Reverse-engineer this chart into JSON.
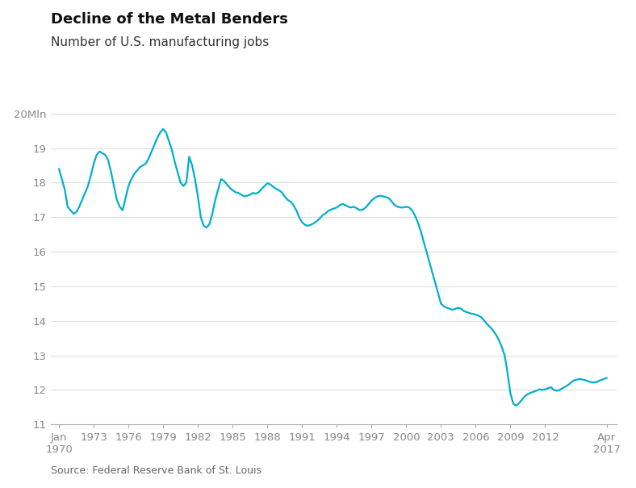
{
  "title": "Decline of the Metal Benders",
  "subtitle": "Number of U.S. manufacturing jobs",
  "source": "Source: Federal Reserve Bank of St. Louis",
  "line_color": "#00AECD",
  "background_color": "#FFFFFF",
  "ylim": [
    11,
    20.6
  ],
  "yticks": [
    11,
    12,
    13,
    14,
    15,
    16,
    17,
    18,
    19,
    20
  ],
  "ytick_labels": [
    "11",
    "12",
    "13",
    "14",
    "15",
    "16",
    "17",
    "18",
    "19",
    "20Mln"
  ],
  "xtick_labels": [
    "Jan\n1970",
    "1973",
    "1976",
    "1979",
    "1982",
    "1985",
    "1988",
    "1991",
    "1994",
    "1997",
    "2000",
    "2003",
    "2006",
    "2009",
    "2012",
    "Apr\n2017"
  ],
  "xtick_positions": [
    1970.0,
    1973.0,
    1976.0,
    1979.0,
    1982.0,
    1985.0,
    1988.0,
    1991.0,
    1994.0,
    1997.0,
    2000.0,
    2003.0,
    2006.0,
    2009.0,
    2012.0,
    2017.333
  ],
  "xlim": [
    1969.3,
    2018.2
  ],
  "data": [
    [
      1970.0,
      18.4
    ],
    [
      1970.25,
      18.1
    ],
    [
      1970.5,
      17.8
    ],
    [
      1970.75,
      17.3
    ],
    [
      1971.0,
      17.2
    ],
    [
      1971.25,
      17.1
    ],
    [
      1971.5,
      17.15
    ],
    [
      1971.75,
      17.3
    ],
    [
      1972.0,
      17.5
    ],
    [
      1972.25,
      17.7
    ],
    [
      1972.5,
      17.9
    ],
    [
      1972.75,
      18.2
    ],
    [
      1973.0,
      18.55
    ],
    [
      1973.25,
      18.8
    ],
    [
      1973.5,
      18.9
    ],
    [
      1973.75,
      18.85
    ],
    [
      1974.0,
      18.8
    ],
    [
      1974.25,
      18.65
    ],
    [
      1974.5,
      18.3
    ],
    [
      1974.75,
      17.9
    ],
    [
      1975.0,
      17.5
    ],
    [
      1975.25,
      17.3
    ],
    [
      1975.5,
      17.2
    ],
    [
      1975.75,
      17.55
    ],
    [
      1976.0,
      17.9
    ],
    [
      1976.25,
      18.1
    ],
    [
      1976.5,
      18.25
    ],
    [
      1976.75,
      18.35
    ],
    [
      1977.0,
      18.45
    ],
    [
      1977.25,
      18.5
    ],
    [
      1977.5,
      18.55
    ],
    [
      1977.75,
      18.7
    ],
    [
      1978.0,
      18.9
    ],
    [
      1978.25,
      19.1
    ],
    [
      1978.5,
      19.3
    ],
    [
      1978.75,
      19.45
    ],
    [
      1979.0,
      19.55
    ],
    [
      1979.25,
      19.45
    ],
    [
      1979.5,
      19.2
    ],
    [
      1979.75,
      18.95
    ],
    [
      1980.0,
      18.6
    ],
    [
      1980.25,
      18.3
    ],
    [
      1980.5,
      18.0
    ],
    [
      1980.75,
      17.9
    ],
    [
      1981.0,
      18.0
    ],
    [
      1981.25,
      18.75
    ],
    [
      1981.5,
      18.5
    ],
    [
      1981.75,
      18.1
    ],
    [
      1982.0,
      17.6
    ],
    [
      1982.25,
      17.0
    ],
    [
      1982.5,
      16.75
    ],
    [
      1982.75,
      16.7
    ],
    [
      1983.0,
      16.8
    ],
    [
      1983.25,
      17.1
    ],
    [
      1983.5,
      17.5
    ],
    [
      1983.75,
      17.8
    ],
    [
      1984.0,
      18.1
    ],
    [
      1984.25,
      18.05
    ],
    [
      1984.5,
      17.95
    ],
    [
      1984.75,
      17.85
    ],
    [
      1985.0,
      17.78
    ],
    [
      1985.25,
      17.72
    ],
    [
      1985.5,
      17.7
    ],
    [
      1985.75,
      17.65
    ],
    [
      1986.0,
      17.6
    ],
    [
      1986.25,
      17.62
    ],
    [
      1986.5,
      17.65
    ],
    [
      1986.75,
      17.7
    ],
    [
      1987.0,
      17.68
    ],
    [
      1987.25,
      17.72
    ],
    [
      1987.5,
      17.82
    ],
    [
      1987.75,
      17.9
    ],
    [
      1988.0,
      17.98
    ],
    [
      1988.25,
      17.95
    ],
    [
      1988.5,
      17.88
    ],
    [
      1988.75,
      17.82
    ],
    [
      1989.0,
      17.78
    ],
    [
      1989.25,
      17.72
    ],
    [
      1989.5,
      17.6
    ],
    [
      1989.75,
      17.5
    ],
    [
      1990.0,
      17.45
    ],
    [
      1990.25,
      17.35
    ],
    [
      1990.5,
      17.2
    ],
    [
      1990.75,
      17.0
    ],
    [
      1991.0,
      16.85
    ],
    [
      1991.25,
      16.78
    ],
    [
      1991.5,
      16.75
    ],
    [
      1991.75,
      16.78
    ],
    [
      1992.0,
      16.82
    ],
    [
      1992.25,
      16.88
    ],
    [
      1992.5,
      16.95
    ],
    [
      1992.75,
      17.05
    ],
    [
      1993.0,
      17.1
    ],
    [
      1993.25,
      17.18
    ],
    [
      1993.5,
      17.22
    ],
    [
      1993.75,
      17.25
    ],
    [
      1994.0,
      17.28
    ],
    [
      1994.25,
      17.35
    ],
    [
      1994.5,
      17.38
    ],
    [
      1994.75,
      17.35
    ],
    [
      1995.0,
      17.3
    ],
    [
      1995.25,
      17.28
    ],
    [
      1995.5,
      17.3
    ],
    [
      1995.75,
      17.25
    ],
    [
      1996.0,
      17.2
    ],
    [
      1996.25,
      17.22
    ],
    [
      1996.5,
      17.28
    ],
    [
      1996.75,
      17.38
    ],
    [
      1997.0,
      17.48
    ],
    [
      1997.25,
      17.55
    ],
    [
      1997.5,
      17.6
    ],
    [
      1997.75,
      17.62
    ],
    [
      1998.0,
      17.6
    ],
    [
      1998.25,
      17.58
    ],
    [
      1998.5,
      17.55
    ],
    [
      1998.75,
      17.45
    ],
    [
      1999.0,
      17.35
    ],
    [
      1999.25,
      17.3
    ],
    [
      1999.5,
      17.28
    ],
    [
      1999.75,
      17.28
    ],
    [
      2000.0,
      17.3
    ],
    [
      2000.25,
      17.28
    ],
    [
      2000.5,
      17.2
    ],
    [
      2000.75,
      17.05
    ],
    [
      2001.0,
      16.85
    ],
    [
      2001.25,
      16.6
    ],
    [
      2001.5,
      16.3
    ],
    [
      2001.75,
      16.0
    ],
    [
      2002.0,
      15.7
    ],
    [
      2002.25,
      15.4
    ],
    [
      2002.5,
      15.1
    ],
    [
      2002.75,
      14.8
    ],
    [
      2003.0,
      14.5
    ],
    [
      2003.25,
      14.42
    ],
    [
      2003.5,
      14.38
    ],
    [
      2003.75,
      14.35
    ],
    [
      2004.0,
      14.32
    ],
    [
      2004.25,
      14.35
    ],
    [
      2004.5,
      14.38
    ],
    [
      2004.75,
      14.35
    ],
    [
      2005.0,
      14.28
    ],
    [
      2005.25,
      14.25
    ],
    [
      2005.5,
      14.22
    ],
    [
      2005.75,
      14.2
    ],
    [
      2006.0,
      14.18
    ],
    [
      2006.25,
      14.15
    ],
    [
      2006.5,
      14.1
    ],
    [
      2006.75,
      14.0
    ],
    [
      2007.0,
      13.9
    ],
    [
      2007.25,
      13.82
    ],
    [
      2007.5,
      13.72
    ],
    [
      2007.75,
      13.6
    ],
    [
      2008.0,
      13.45
    ],
    [
      2008.25,
      13.25
    ],
    [
      2008.5,
      13.0
    ],
    [
      2008.75,
      12.5
    ],
    [
      2009.0,
      11.9
    ],
    [
      2009.25,
      11.6
    ],
    [
      2009.5,
      11.55
    ],
    [
      2009.75,
      11.62
    ],
    [
      2010.0,
      11.72
    ],
    [
      2010.25,
      11.82
    ],
    [
      2010.5,
      11.88
    ],
    [
      2010.75,
      11.92
    ],
    [
      2011.0,
      11.95
    ],
    [
      2011.25,
      11.98
    ],
    [
      2011.5,
      12.02
    ],
    [
      2011.75,
      12.0
    ],
    [
      2012.0,
      12.02
    ],
    [
      2012.25,
      12.05
    ],
    [
      2012.5,
      12.08
    ],
    [
      2012.75,
      12.0
    ],
    [
      2013.0,
      11.98
    ],
    [
      2013.25,
      12.0
    ],
    [
      2013.5,
      12.05
    ],
    [
      2013.75,
      12.1
    ],
    [
      2014.0,
      12.15
    ],
    [
      2014.25,
      12.22
    ],
    [
      2014.5,
      12.28
    ],
    [
      2014.75,
      12.3
    ],
    [
      2015.0,
      12.32
    ],
    [
      2015.25,
      12.3
    ],
    [
      2015.5,
      12.28
    ],
    [
      2015.75,
      12.25
    ],
    [
      2016.0,
      12.22
    ],
    [
      2016.25,
      12.22
    ],
    [
      2016.5,
      12.24
    ],
    [
      2016.75,
      12.28
    ],
    [
      2017.333,
      12.35
    ]
  ]
}
